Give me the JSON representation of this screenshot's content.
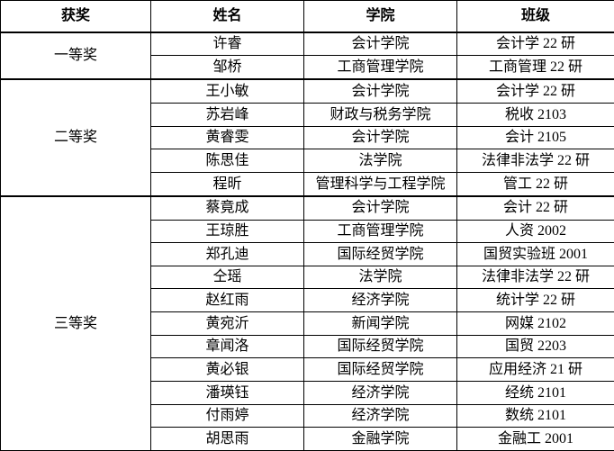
{
  "colors": {
    "border": "#000000",
    "text": "#000000",
    "background": "#ffffff"
  },
  "table": {
    "headers": [
      "获奖",
      "姓名",
      "学院",
      "班级"
    ],
    "groups": [
      {
        "award": "一等奖",
        "rows": [
          {
            "name": "许睿",
            "college": "会计学院",
            "class": "会计学 22 研"
          },
          {
            "name": "邹桥",
            "college": "工商管理学院",
            "class": "工商管理 22 研"
          }
        ]
      },
      {
        "award": "二等奖",
        "rows": [
          {
            "name": "王小敏",
            "college": "会计学院",
            "class": "会计学 22 研"
          },
          {
            "name": "苏岩峰",
            "college": "财政与税务学院",
            "class": "税收 2103"
          },
          {
            "name": "黄睿雯",
            "college": "会计学院",
            "class": "会计 2105"
          },
          {
            "name": "陈思佳",
            "college": "法学院",
            "class": "法律非法学 22 研"
          },
          {
            "name": "程昕",
            "college": "管理科学与工程学院",
            "class": "管工 22 研"
          }
        ]
      },
      {
        "award": "三等奖",
        "rows": [
          {
            "name": "蔡竟成",
            "college": "会计学院",
            "class": "会计 22 研"
          },
          {
            "name": "王琼胜",
            "college": "工商管理学院",
            "class": "人资 2002"
          },
          {
            "name": "郑孔迪",
            "college": "国际经贸学院",
            "class": "国贸实验班 2001"
          },
          {
            "name": "仝瑶",
            "college": "法学院",
            "class": "法律非法学 22 研"
          },
          {
            "name": "赵红雨",
            "college": "经济学院",
            "class": "统计学 22 研"
          },
          {
            "name": "黄宛沂",
            "college": "新闻学院",
            "class": "网媒 2102"
          },
          {
            "name": "章闻洛",
            "college": "国际经贸学院",
            "class": "国贸 2203"
          },
          {
            "name": "黄必银",
            "college": "国际经贸学院",
            "class": "应用经济 21 研"
          },
          {
            "name": "潘瑛钰",
            "college": "经济学院",
            "class": "经统 2101"
          },
          {
            "name": "付雨婷",
            "college": "经济学院",
            "class": "数统 2101"
          },
          {
            "name": "胡思雨",
            "college": "金融学院",
            "class": "金融工 2001"
          }
        ]
      }
    ]
  }
}
